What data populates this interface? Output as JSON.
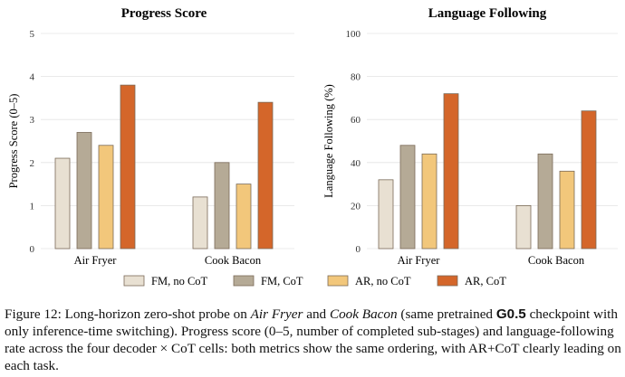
{
  "chart_data": [
    {
      "type": "bar",
      "title": "Progress Score",
      "ylabel": "Progress Score (0–5)",
      "ylim": [
        0,
        5
      ],
      "yticks": [
        "0",
        "1",
        "2",
        "3",
        "4",
        "5"
      ],
      "grid": true,
      "categories": [
        "Air Fryer",
        "Cook Bacon"
      ],
      "series": [
        {
          "name": "FM, no CoT",
          "color": "#e8e0d2",
          "values": [
            2.1,
            1.2
          ]
        },
        {
          "name": "FM, CoT",
          "color": "#b5aa96",
          "values": [
            2.7,
            2.0
          ]
        },
        {
          "name": "AR, no CoT",
          "color": "#f2c77b",
          "values": [
            2.4,
            1.5
          ]
        },
        {
          "name": "AR, CoT",
          "color": "#d4662a",
          "values": [
            3.8,
            3.4
          ]
        }
      ]
    },
    {
      "type": "bar",
      "title": "Language Following",
      "ylabel": "Language Following (%)",
      "ylim": [
        0,
        100
      ],
      "yticks": [
        "0",
        "20",
        "40",
        "60",
        "80",
        "100"
      ],
      "grid": true,
      "categories": [
        "Air Fryer",
        "Cook Bacon"
      ],
      "series": [
        {
          "name": "FM, no CoT",
          "color": "#e8e0d2",
          "values": [
            32,
            20
          ]
        },
        {
          "name": "FM, CoT",
          "color": "#b5aa96",
          "values": [
            48,
            44
          ]
        },
        {
          "name": "AR, no CoT",
          "color": "#f2c77b",
          "values": [
            44,
            36
          ]
        },
        {
          "name": "AR, CoT",
          "color": "#d4662a",
          "values": [
            72,
            64
          ]
        }
      ]
    }
  ],
  "legend": {
    "placement": "bottom",
    "items": [
      "FM, no CoT",
      "FM, CoT",
      "AR, no CoT",
      "AR, CoT"
    ]
  },
  "caption": {
    "prefix": "Figure 12: Long-horizon zero-shot probe on ",
    "task1": "Air Fryer",
    "and": " and ",
    "task2": "Cook Bacon",
    "mid": " (same pretrained ",
    "model": "G0.5",
    "suffix": " checkpoint with only inference-time switching). Progress score (0–5, number of completed sub-stages) and language-following rate across the four decoder × CoT cells: both metrics show the same ordering, with AR+CoT clearly leading on each task."
  }
}
